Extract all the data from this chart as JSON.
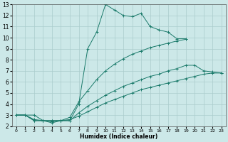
{
  "xlabel": "Humidex (Indice chaleur)",
  "xlim": [
    -0.5,
    23.5
  ],
  "ylim": [
    2,
    13
  ],
  "xticks": [
    0,
    1,
    2,
    3,
    4,
    5,
    6,
    7,
    8,
    9,
    10,
    11,
    12,
    13,
    14,
    15,
    16,
    17,
    18,
    19,
    20,
    21,
    22,
    23
  ],
  "yticks": [
    2,
    3,
    4,
    5,
    6,
    7,
    8,
    9,
    10,
    11,
    12,
    13
  ],
  "bg_color": "#cce8e8",
  "grid_color": "#aacccc",
  "line_color": "#1a7a6a",
  "line1_x": [
    0,
    1,
    2,
    3,
    4,
    5,
    6,
    7,
    8,
    9,
    10,
    11,
    12,
    13,
    14,
    15,
    16,
    17,
    18,
    19
  ],
  "line1_y": [
    3,
    3,
    3,
    2.5,
    2.5,
    2.5,
    2.5,
    4.0,
    9.0,
    10.5,
    13.0,
    12.5,
    12.0,
    11.9,
    12.2,
    11.0,
    10.7,
    10.5,
    9.9,
    9.9
  ],
  "line2_x": [
    0,
    1,
    2,
    3,
    4,
    5,
    6,
    7,
    8,
    9,
    10,
    11,
    12,
    13,
    14,
    15,
    16,
    17,
    18,
    19,
    20,
    21,
    22,
    23
  ],
  "line2_y": [
    3,
    3,
    2.6,
    2.5,
    2.5,
    2.5,
    2.8,
    4.2,
    5.2,
    6.2,
    7.0,
    7.6,
    8.1,
    8.5,
    8.8,
    9.1,
    9.3,
    9.5,
    9.7,
    9.85,
    null,
    null,
    null,
    null
  ],
  "line3_x": [
    0,
    1,
    2,
    3,
    4,
    5,
    6,
    7,
    8,
    9,
    10,
    11,
    12,
    13,
    14,
    15,
    16,
    17,
    18,
    19,
    20,
    21,
    22,
    23
  ],
  "line3_y": [
    3,
    3,
    2.5,
    2.5,
    2.3,
    2.5,
    2.5,
    3.2,
    3.8,
    4.3,
    4.8,
    5.2,
    5.6,
    5.9,
    6.2,
    6.5,
    6.7,
    7.0,
    7.2,
    7.5,
    7.5,
    7.0,
    6.9,
    6.8
  ],
  "line4_x": [
    0,
    1,
    2,
    3,
    4,
    5,
    6,
    7,
    8,
    9,
    10,
    11,
    12,
    13,
    14,
    15,
    16,
    17,
    18,
    19,
    20,
    21,
    22,
    23
  ],
  "line4_y": [
    3,
    3,
    2.5,
    2.5,
    2.4,
    2.5,
    2.6,
    2.9,
    3.3,
    3.7,
    4.1,
    4.4,
    4.7,
    5.0,
    5.3,
    5.5,
    5.7,
    5.9,
    6.1,
    6.3,
    6.5,
    6.7,
    6.8,
    6.8
  ],
  "figsize": [
    3.2,
    2.0
  ],
  "dpi": 100
}
